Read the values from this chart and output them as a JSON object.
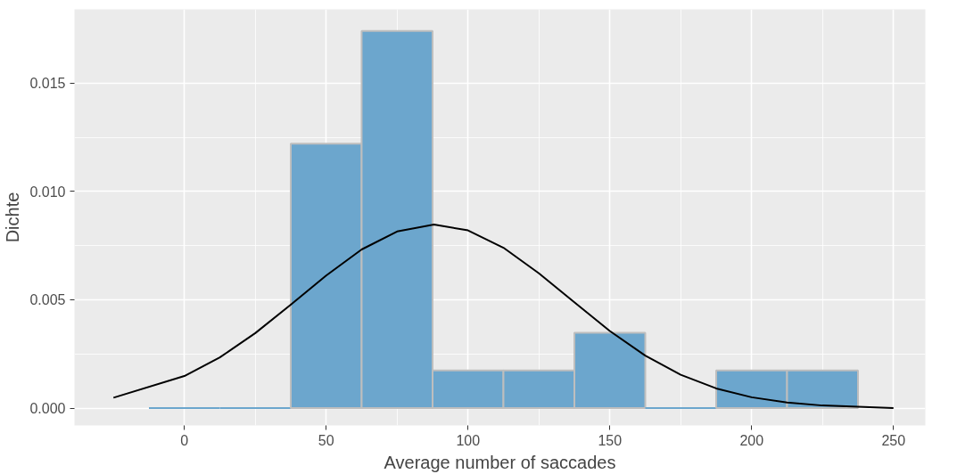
{
  "chart_data": [
    {
      "type": "histogram",
      "xlabel": "Average number of saccades",
      "ylabel": "Dichte",
      "bins": [
        -12.5,
        12.5,
        37.5,
        62.5,
        87.5,
        112.5,
        137.5,
        162.5,
        187.5,
        212.5,
        237.5
      ],
      "values": [
        0,
        0,
        0.0122,
        0.0174,
        0.00174,
        0.00174,
        0.00348,
        0,
        0.00174,
        0.00174
      ],
      "color": "#6ca6cd",
      "xlim": [
        -38.75,
        261.25
      ],
      "ylim": [
        -0.0008,
        0.0184
      ],
      "xticks": [
        0,
        50,
        100,
        150,
        200,
        250
      ],
      "yticks": [
        {
          "value": 0,
          "label": "0.000"
        },
        {
          "value": 0.005,
          "label": "0.005"
        },
        {
          "value": 0.01,
          "label": "0.010"
        },
        {
          "value": 0.015,
          "label": "0.015"
        }
      ],
      "grid": true,
      "series": [
        {
          "type": "line",
          "color": "#000000",
          "x": [
            -25,
            0,
            12.5,
            25,
            37.5,
            50,
            62.5,
            75,
            88,
            100,
            112.5,
            125,
            137.5,
            150,
            162.5,
            175,
            187.5,
            200,
            212.5,
            225,
            250
          ],
          "values": [
            0.00048,
            0.00148,
            0.00234,
            0.00346,
            0.00477,
            0.00612,
            0.00732,
            0.00815,
            0.00847,
            0.0082,
            0.0074,
            0.00622,
            0.00488,
            0.00356,
            0.00242,
            0.00154,
            0.00091,
            0.0005,
            0.00026,
            0.00012,
            0
          ]
        }
      ]
    }
  ]
}
